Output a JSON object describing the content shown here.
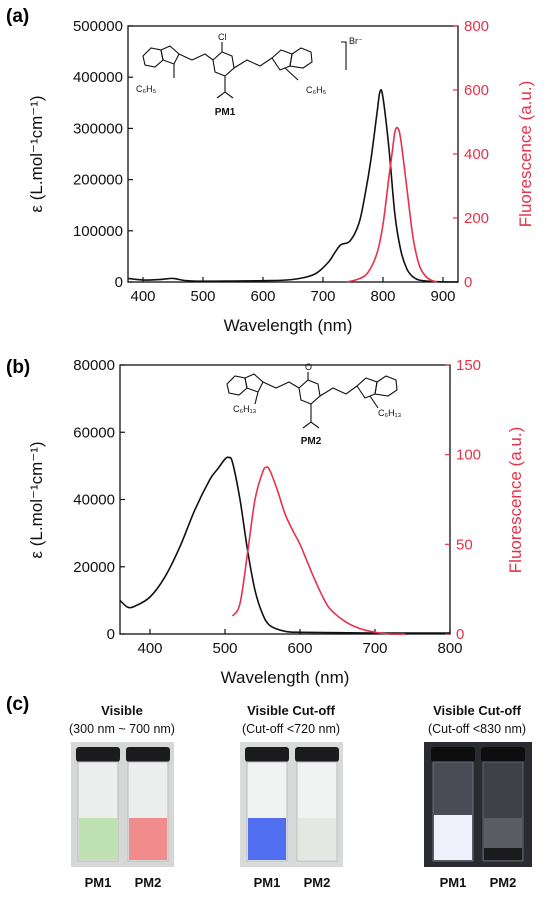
{
  "panels": {
    "a": {
      "label": "(a)",
      "left_ticks": [
        "0",
        "100000",
        "200000",
        "300000",
        "400000",
        "500000"
      ],
      "right_ticks": [
        "0",
        "200",
        "400",
        "600",
        "800"
      ],
      "x_ticks": [
        "400",
        "500",
        "600",
        "700",
        "800",
        "900"
      ],
      "xlabel": "Wavelength (nm)",
      "ylabel_left": "ε (L.mol⁻¹cm⁻¹)",
      "ylabel_right": "Fluorescence (a.u.)",
      "molecule": {
        "name": "PM1",
        "counterion": "Br⁻",
        "substituent_left": "C₆H₅",
        "substituent_right": "C₆H₅",
        "atom": "Cl"
      }
    },
    "b": {
      "label": "(b)",
      "left_ticks": [
        "0",
        "20000",
        "40000",
        "60000",
        "80000"
      ],
      "right_ticks": [
        "0",
        "50",
        "100",
        "150"
      ],
      "x_ticks": [
        "400",
        "500",
        "600",
        "700",
        "800"
      ],
      "xlabel": "Wavelength (nm)",
      "ylabel_left": "ε (L.mol⁻¹cm⁻¹)",
      "ylabel_right": "Fluorescence (a.u.)",
      "molecule": {
        "name": "PM2",
        "substituent_left": "C₆H₁₃",
        "substituent_right": "C₆H₁₃",
        "atom": "O"
      }
    },
    "c": {
      "label": "(c)",
      "photos": [
        {
          "title": "Visible",
          "subtitle": "(300 nm ~ 700 nm)",
          "labels": [
            "PM1",
            "PM2"
          ]
        },
        {
          "title": "Visible  Cut-off",
          "subtitle": "(Cut-off  <720 nm)",
          "labels": [
            "PM1",
            "PM2"
          ]
        },
        {
          "title": "Visible  Cut-off",
          "subtitle": "(Cut-off  <830 nm)",
          "labels": [
            "PM1",
            "PM2"
          ]
        }
      ]
    }
  },
  "colors": {
    "absorbance": "#111111",
    "fluorescence": "#e8304a"
  },
  "chart_data": [
    {
      "type": "line",
      "xlabel": "Wavelength (nm)",
      "ylabel": "ε (L.mol⁻¹cm⁻¹)",
      "y2label": "Fluorescence (a.u.)",
      "xlim": [
        375,
        925
      ],
      "ylim": [
        0,
        500000
      ],
      "y2lim": [
        0,
        800
      ],
      "series": [
        {
          "axis": "left",
          "color": "#111111",
          "x": [
            375,
            400,
            430,
            450,
            470,
            500,
            550,
            600,
            640,
            670,
            690,
            710,
            720,
            730,
            745,
            760,
            770,
            780,
            790,
            795,
            800,
            810,
            820,
            830,
            840,
            850,
            860,
            875,
            890,
            925
          ],
          "y": [
            7000,
            4000,
            5000,
            7000,
            3000,
            1500,
            2000,
            2500,
            4000,
            9000,
            18000,
            40000,
            58000,
            73000,
            80000,
            115000,
            170000,
            240000,
            330000,
            372000,
            360000,
            260000,
            130000,
            60000,
            25000,
            10000,
            4000,
            1500,
            500,
            0
          ]
        },
        {
          "axis": "right",
          "color": "#e8304a",
          "x": [
            740,
            760,
            775,
            790,
            800,
            810,
            815,
            820,
            825,
            830,
            840,
            850,
            860,
            870,
            880,
            890
          ],
          "y": [
            0,
            10,
            30,
            90,
            180,
            330,
            400,
            470,
            480,
            440,
            290,
            140,
            55,
            20,
            6,
            0
          ]
        }
      ]
    },
    {
      "type": "line",
      "xlabel": "Wavelength (nm)",
      "ylabel": "ε (L.mol⁻¹cm⁻¹)",
      "y2label": "Fluorescence (a.u.)",
      "xlim": [
        360,
        800
      ],
      "ylim": [
        0,
        80000
      ],
      "y2lim": [
        0,
        150
      ],
      "series": [
        {
          "axis": "left",
          "color": "#111111",
          "x": [
            360,
            370,
            380,
            400,
            420,
            440,
            460,
            480,
            490,
            500,
            505,
            510,
            520,
            530,
            540,
            550,
            560,
            580,
            600,
            650,
            700,
            800
          ],
          "y": [
            10000,
            8000,
            8300,
            11000,
            17000,
            26000,
            37000,
            46000,
            49000,
            52000,
            52500,
            51000,
            40000,
            25000,
            13000,
            6000,
            2500,
            800,
            500,
            400,
            300,
            300
          ],
          "smooth": true
        },
        {
          "axis": "right",
          "color": "#e8304a",
          "x": [
            510,
            520,
            530,
            540,
            550,
            555,
            560,
            570,
            580,
            590,
            600,
            610,
            620,
            630,
            640,
            660,
            680,
            700,
            720,
            740
          ],
          "y": [
            10,
            17,
            45,
            75,
            90,
            93,
            91,
            80,
            67,
            58,
            50,
            40,
            30,
            21,
            14,
            7,
            3,
            1,
            0,
            0
          ],
          "smooth": true
        }
      ]
    }
  ]
}
